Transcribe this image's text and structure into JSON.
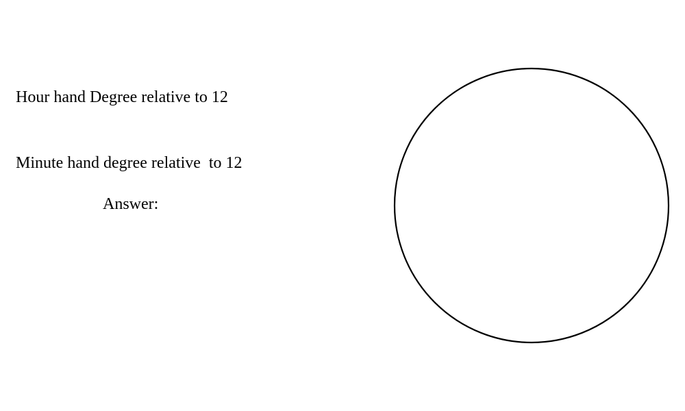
{
  "labels": {
    "hour_hand": "Hour hand Degree relative to 12",
    "minute_hand": "Minute hand degree relative  to 12",
    "answer": "Answer:"
  },
  "clock_face": {
    "stroke_color": "#000000",
    "fill_color": "#ffffff"
  }
}
